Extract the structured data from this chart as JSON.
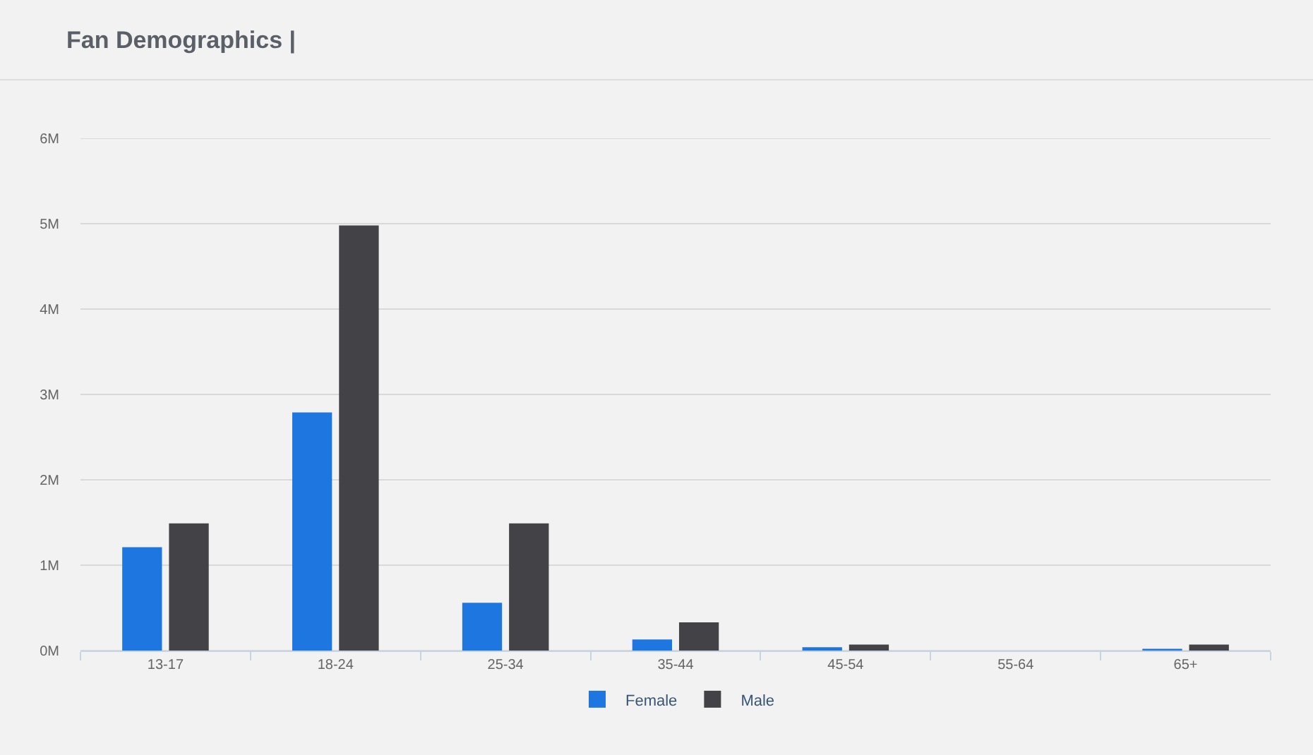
{
  "chart_data": {
    "type": "bar",
    "title": "Fan Demographics |",
    "categories": [
      "13-17",
      "18-24",
      "25-34",
      "35-44",
      "45-54",
      "55-64",
      "65+"
    ],
    "series": [
      {
        "name": "Female",
        "color": "#1e77e0",
        "values": [
          1.21,
          2.79,
          0.56,
          0.13,
          0.04,
          0,
          0.02
        ]
      },
      {
        "name": "Male",
        "color": "#434247",
        "values": [
          1.49,
          4.98,
          1.49,
          0.33,
          0.07,
          0,
          0.07
        ]
      }
    ],
    "ylim": [
      0,
      6
    ],
    "yticks": [
      {
        "value": 0,
        "label": "0M"
      },
      {
        "value": 1,
        "label": "1M"
      },
      {
        "value": 2,
        "label": "2M"
      },
      {
        "value": 3,
        "label": "3M"
      },
      {
        "value": 4,
        "label": "4M"
      },
      {
        "value": 5,
        "label": "5M"
      },
      {
        "value": 6,
        "label": "6M"
      }
    ],
    "grid": "y",
    "legend": "bottom"
  }
}
